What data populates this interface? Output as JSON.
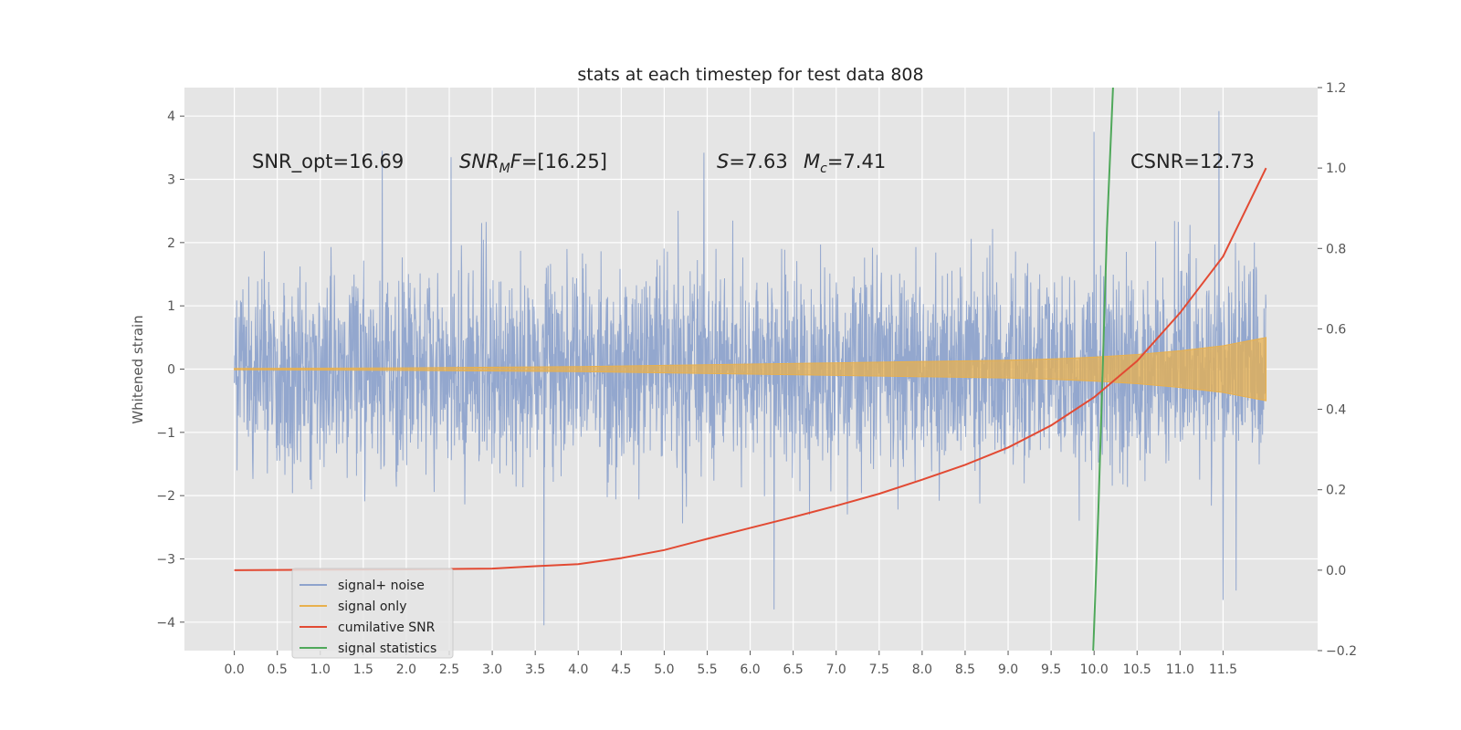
{
  "chart_data": {
    "type": "line",
    "title": "stats at each timestep for test data 808",
    "ylabel": "Whitened strain",
    "xlim": [
      -0.58,
      12.6
    ],
    "ylim_left": [
      -4.45,
      4.45
    ],
    "ylim_right": [
      -0.2,
      1.2
    ],
    "x_ticks": [
      "0.0",
      "0.5",
      "1.0",
      "1.5",
      "2.0",
      "2.5",
      "3.0",
      "3.5",
      "4.0",
      "4.5",
      "5.0",
      "5.5",
      "6.0",
      "6.5",
      "7.0",
      "7.5",
      "8.0",
      "8.5",
      "9.0",
      "9.5",
      "10.0",
      "10.5",
      "11.0",
      "11.5"
    ],
    "y_ticks_left": [
      "4",
      "3",
      "2",
      "1",
      "0",
      "−1",
      "−2",
      "−3",
      "−4"
    ],
    "y_ticks_right": [
      "1.2",
      "1.0",
      "0.8",
      "0.6",
      "0.4",
      "0.2",
      "0.0",
      "−0.2"
    ],
    "annotations": {
      "snr_opt": "SNR_opt=16.69",
      "snr_mf_sym": "SNR",
      "snr_mf_sub": "M",
      "snr_mf_rest": "F=[16.25]",
      "s_sym": "S",
      "s_val": "=7.63",
      "mc_sym": "M",
      "mc_sub": "c",
      "mc_val": "=7.41",
      "csnr": "CSNR=12.73"
    },
    "legend": {
      "placement": "lower-left",
      "items": [
        {
          "label": "signal+ noise",
          "color": "#8ea3cc"
        },
        {
          "label": "signal only",
          "color": "#e8b04d"
        },
        {
          "label": "cumilative SNR",
          "color": "#e24a33"
        },
        {
          "label": "signal statistics",
          "color": "#4fa85a"
        }
      ]
    },
    "series": [
      {
        "name": "signal+ noise",
        "axis": "left",
        "color": "#8ea3cc",
        "x_range": [
          0,
          12.0
        ],
        "envelope": {
          "typical_amplitude": 2.3,
          "peak_examples": [
            {
              "x": 1.72,
              "y": 3.45
            },
            {
              "x": 2.52,
              "y": 3.35
            },
            {
              "x": 5.46,
              "y": 3.42
            },
            {
              "x": 11.45,
              "y": 4.08
            },
            {
              "x": 10.0,
              "y": 3.75
            },
            {
              "x": 3.6,
              "y": -4.05
            },
            {
              "x": 6.28,
              "y": -3.8
            },
            {
              "x": 11.5,
              "y": -3.65
            },
            {
              "x": 11.65,
              "y": -3.5
            }
          ]
        }
      },
      {
        "name": "signal only",
        "axis": "left",
        "color": "#e8b04d",
        "x": [
          0,
          2,
          4,
          5,
          6,
          7,
          8,
          9,
          9.5,
          10,
          10.5,
          11,
          11.5,
          12.0
        ],
        "amplitude": [
          0.01,
          0.02,
          0.04,
          0.06,
          0.08,
          0.1,
          0.12,
          0.14,
          0.16,
          0.19,
          0.23,
          0.29,
          0.37,
          0.5
        ]
      },
      {
        "name": "cumilative SNR",
        "axis": "right",
        "color": "#e24a33",
        "x": [
          0,
          1,
          2,
          3,
          3.5,
          4,
          4.5,
          5,
          5.5,
          6,
          6.5,
          7,
          7.5,
          8,
          8.5,
          9,
          9.5,
          10,
          10.5,
          11,
          11.5,
          12.0
        ],
        "y": [
          0.0,
          0.001,
          0.002,
          0.004,
          0.01,
          0.015,
          0.03,
          0.05,
          0.078,
          0.105,
          0.132,
          0.16,
          0.19,
          0.225,
          0.262,
          0.305,
          0.36,
          0.43,
          0.52,
          0.64,
          0.78,
          1.0
        ]
      },
      {
        "name": "signal statistics",
        "axis": "right",
        "color": "#4fa85a",
        "x": [
          9.99,
          10.05,
          10.1,
          10.15,
          10.22
        ],
        "y": [
          -0.2,
          0.15,
          0.5,
          0.85,
          1.2
        ]
      }
    ],
    "grid": true,
    "style": "ggplot"
  }
}
